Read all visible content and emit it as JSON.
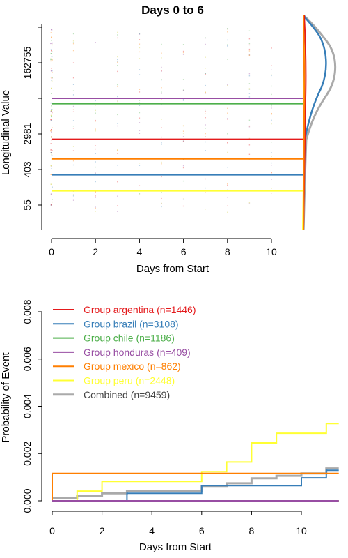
{
  "colors": {
    "argentina": "#e41a1c",
    "brazil": "#377eb8",
    "chile": "#4daf4a",
    "honduras": "#984ea3",
    "mexico": "#ff7f00",
    "peru": "#ffff33",
    "combined": "#aaaaaa"
  },
  "chart_data": [
    {
      "type": "scatter",
      "title": "Days 0 to 6",
      "xlabel": "Days from Start",
      "ylabel": "Longitudinal Value",
      "x_ticks": [
        0,
        2,
        4,
        6,
        8,
        10
      ],
      "xlim": [
        -0.5,
        11.5
      ],
      "y_scale": "log",
      "y_tick_labels": [
        "55",
        "403",
        "2981",
        "162755"
      ],
      "y_minor_tick_count": 3,
      "grid": false,
      "series": [
        {
          "key": "honduras",
          "level": 4.0
        },
        {
          "key": "chile",
          "level": 3.85
        },
        {
          "key": "argentina",
          "level": 2.85
        },
        {
          "key": "mexico",
          "level": 2.3
        },
        {
          "key": "brazil",
          "level": 1.85
        },
        {
          "key": "peru",
          "level": 1.4
        }
      ],
      "point_columns": [
        0,
        1,
        2,
        3,
        4,
        5,
        6,
        7,
        8,
        9,
        10
      ],
      "marginal_density": true
    },
    {
      "type": "line",
      "step": true,
      "xlabel": "Days from Start",
      "ylabel": "Probability of Event",
      "x_ticks": [
        0,
        2,
        4,
        6,
        8,
        10
      ],
      "xlim": [
        0,
        11.5
      ],
      "y_ticks": [
        "0.000",
        "0.002",
        "0.004",
        "0.006",
        "0.008"
      ],
      "ylim": [
        0,
        0.008
      ],
      "grid": false,
      "legend_position": "top-left",
      "legend": [
        {
          "key": "argentina",
          "label": "Group argentina (n=1446)"
        },
        {
          "key": "brazil",
          "label": "Group brazil (n=3108)"
        },
        {
          "key": "chile",
          "label": "Group chile (n=1186)"
        },
        {
          "key": "honduras",
          "label": "Group honduras (n=409)"
        },
        {
          "key": "mexico",
          "label": "Group mexico (n=862)"
        },
        {
          "key": "peru",
          "label": "Group peru (n=2448)"
        },
        {
          "key": "combined",
          "label": "Combined (n=9459)"
        }
      ],
      "series": [
        {
          "key": "argentina",
          "x": [
            0,
            11.5
          ],
          "y": [
            0,
            0
          ]
        },
        {
          "key": "honduras",
          "x": [
            0,
            11.5
          ],
          "y": [
            0,
            0
          ]
        },
        {
          "key": "chile",
          "x": [
            0,
            11.5
          ],
          "y": [
            0,
            0
          ]
        },
        {
          "key": "mexico",
          "x": [
            0,
            0,
            11.5
          ],
          "y": [
            0,
            0.00116,
            0.00116
          ]
        },
        {
          "key": "brazil",
          "x": [
            0,
            3,
            6,
            10,
            11,
            11.5
          ],
          "y": [
            0,
            0.00032,
            0.00064,
            0.00097,
            0.00129,
            0.00129
          ]
        },
        {
          "key": "peru",
          "x": [
            0,
            1,
            2,
            6,
            7,
            8,
            9,
            11,
            11.5
          ],
          "y": [
            0,
            0.00041,
            0.00082,
            0.00123,
            0.00164,
            0.00245,
            0.00286,
            0.00327,
            0.00327
          ]
        },
        {
          "key": "combined",
          "x": [
            0,
            1,
            2,
            3,
            6,
            7,
            8,
            9,
            10,
            11,
            11.5
          ],
          "y": [
            0.00011,
            0.00021,
            0.00032,
            0.00042,
            0.00063,
            0.00074,
            0.00095,
            0.00106,
            0.00116,
            0.00137,
            0.00137
          ]
        }
      ]
    }
  ]
}
